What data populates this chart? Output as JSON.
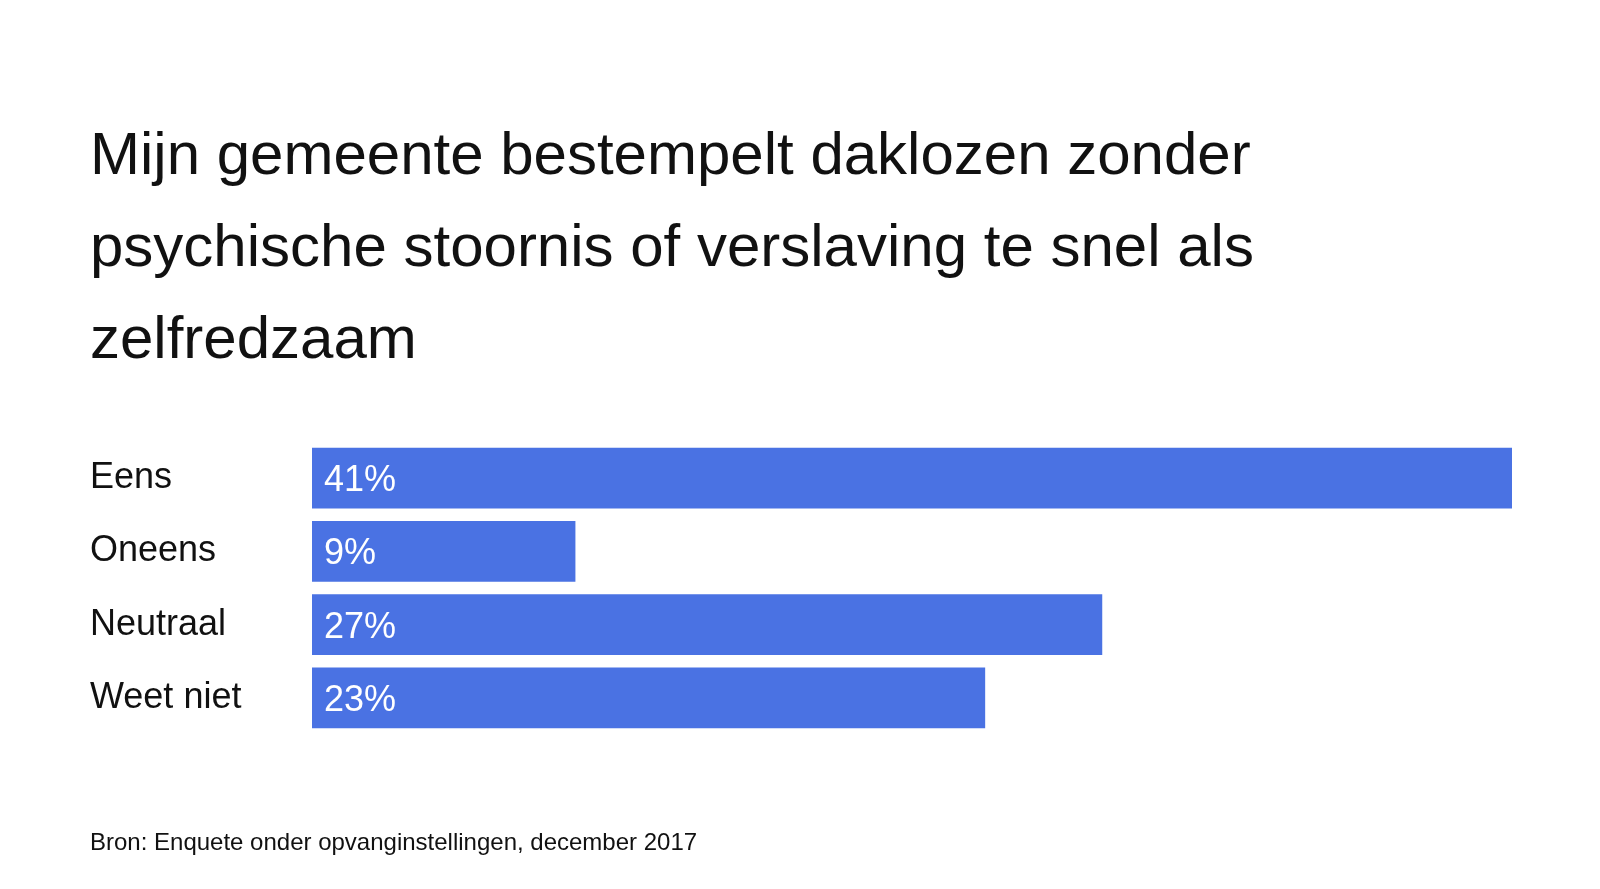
{
  "chart_data": {
    "type": "bar",
    "orientation": "horizontal",
    "title": "Mijn gemeente bestempelt daklozen zonder psychische stoornis of verslaving te snel als zelfredzaam",
    "categories": [
      "Eens",
      "Oneens",
      "Neutraal",
      "Weet niet"
    ],
    "values": [
      41,
      9,
      27,
      23
    ],
    "value_labels": [
      "41%",
      "9%",
      "27%",
      "23%"
    ],
    "color": "#4a72e3",
    "annotations": [
      "Bron: Enquete onder opvanginstellingen, december 2017"
    ]
  }
}
